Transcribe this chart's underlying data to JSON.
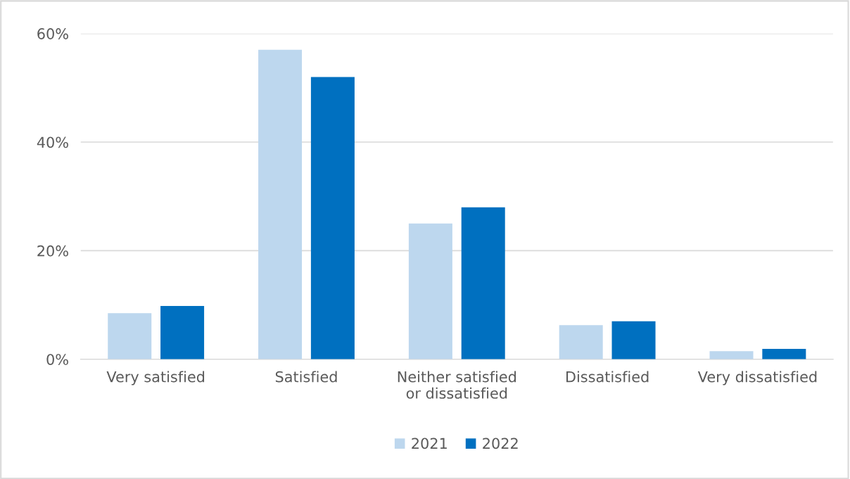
{
  "chart_data": {
    "type": "bar",
    "categories": [
      "Very satisfied",
      "Satisfied",
      "Neither satisfied or dissatisfied",
      "Dissatisfied",
      "Very dissatisfied"
    ],
    "series": [
      {
        "name": "2021",
        "color": "#bdd7ee",
        "values": [
          8.5,
          57,
          25,
          6.3,
          1.5
        ]
      },
      {
        "name": "2022",
        "color": "#0070c0",
        "values": [
          9.8,
          52,
          28,
          7.0,
          1.9
        ]
      }
    ],
    "ylim": [
      0,
      60
    ],
    "yticks": [
      {
        "value": 0,
        "label": "0%"
      },
      {
        "value": 20,
        "label": "20%"
      },
      {
        "value": 40,
        "label": "40%"
      },
      {
        "value": 60,
        "label": "60%"
      }
    ],
    "grid": "y",
    "legend": "bottom"
  }
}
